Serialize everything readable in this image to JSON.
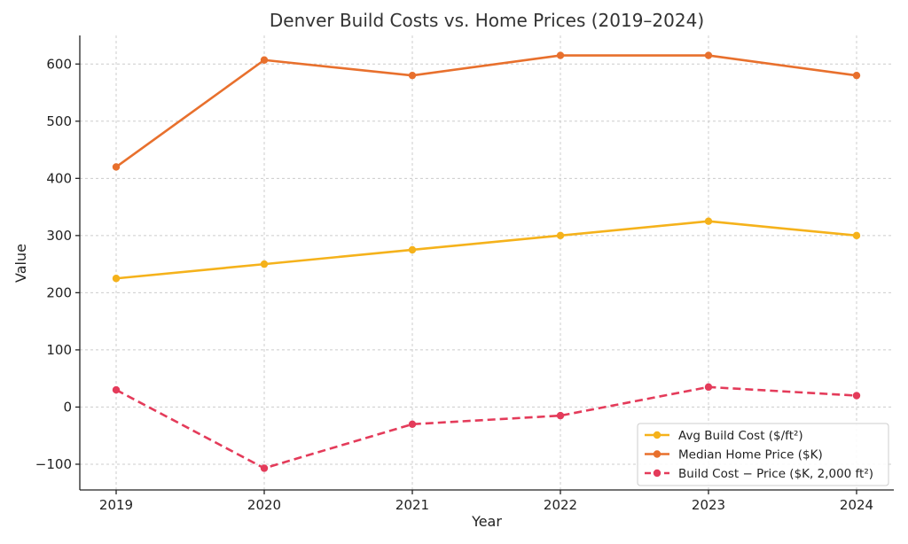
{
  "chart_data": {
    "type": "line",
    "title": "Denver Build Costs vs. Home Prices (2019–2024)",
    "xlabel": "Year",
    "ylabel": "Value",
    "categories": [
      "2019",
      "2020",
      "2021",
      "2022",
      "2023",
      "2024"
    ],
    "ylim": [
      -145,
      650
    ],
    "yticks": [
      -100,
      0,
      100,
      200,
      300,
      400,
      500,
      600
    ],
    "ytick_labels": [
      "−100",
      "0",
      "100",
      "200",
      "300",
      "400",
      "500",
      "600"
    ],
    "grid": true,
    "legend_position": "bottom-right",
    "series": [
      {
        "name": "Avg Build Cost ($/ft²)",
        "values": [
          225,
          250,
          275,
          300,
          325,
          300
        ],
        "color": "#f5b21b",
        "style": "solid"
      },
      {
        "name": "Median Home Price ($K)",
        "values": [
          420,
          607,
          580,
          615,
          615,
          580
        ],
        "color": "#e8702d",
        "style": "solid"
      },
      {
        "name": "Build Cost − Price ($K, 2,000 ft²)",
        "values": [
          30,
          -107,
          -30,
          -15,
          35,
          20
        ],
        "color": "#e43b5a",
        "style": "dashed"
      }
    ]
  }
}
